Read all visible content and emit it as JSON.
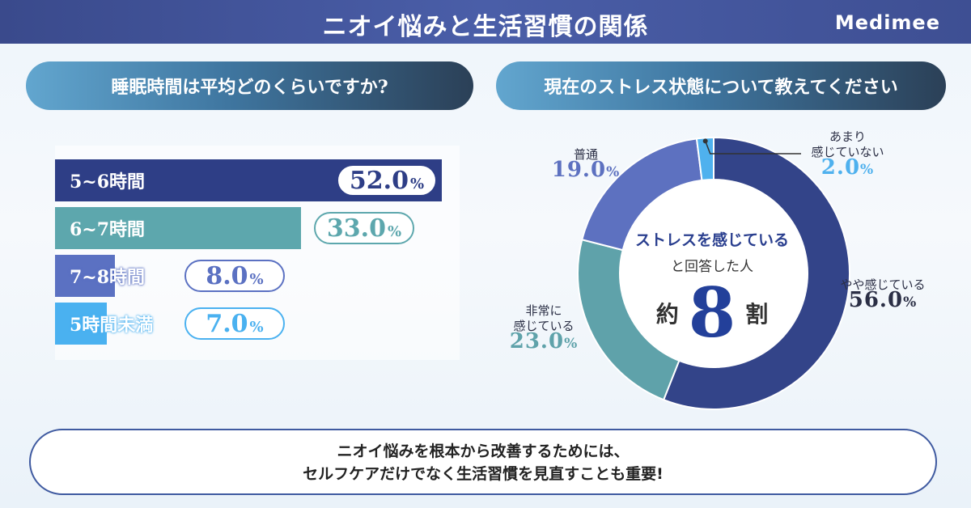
{
  "header": {
    "title": "ニオイ悩みと生活習慣の関係",
    "brand": "Medimee"
  },
  "left_panel": {
    "question": "睡眠時間は平均どのくらいですか?"
  },
  "right_panel": {
    "question": "現在のストレス状態について教えてください",
    "center_line1": "ストレスを感じている",
    "center_line2": "と回答した人",
    "center_prefix": "約",
    "center_big": "8",
    "center_suffix": "割"
  },
  "footer": {
    "line1": "ニオイ悩みを根本から改善するためには、",
    "line2": "セルフケアだけでなく生活習慣を見直すことも重要!"
  },
  "chart_data": [
    {
      "type": "bar",
      "orientation": "horizontal",
      "categories": [
        "5~6時間",
        "6~7時間",
        "7~8時間",
        "5時間未満"
      ],
      "values": [
        52.0,
        33.0,
        8.0,
        7.0
      ],
      "value_labels": [
        "52.0",
        "33.0",
        "8.0",
        "7.0"
      ],
      "unit": "%",
      "colors": [
        "#2e3e86",
        "#5da7ad",
        "#5b71c2",
        "#4ab1f0"
      ],
      "xlim": [
        0,
        100
      ]
    },
    {
      "type": "pie",
      "donut": true,
      "categories": [
        "やや感じている",
        "非常に感じている",
        "普通",
        "あまり感じていない"
      ],
      "values": [
        56.0,
        23.0,
        19.0,
        2.0
      ],
      "value_labels": [
        "56.0",
        "23.0",
        "19.0",
        "2.0"
      ],
      "unit": "%",
      "colors": [
        "#334489",
        "#5fa2aa",
        "#5d71c0",
        "#4fb1ee"
      ]
    }
  ],
  "donut_labels": {
    "yaya": {
      "name": "やや感じている",
      "num": "56.0"
    },
    "hijo": {
      "name1": "非常に",
      "name2": "感じている",
      "num": "23.0"
    },
    "futsu": {
      "name": "普通",
      "num": "19.0"
    },
    "amari": {
      "name1": "あまり",
      "name2": "感じていない",
      "num": "2.0"
    }
  }
}
